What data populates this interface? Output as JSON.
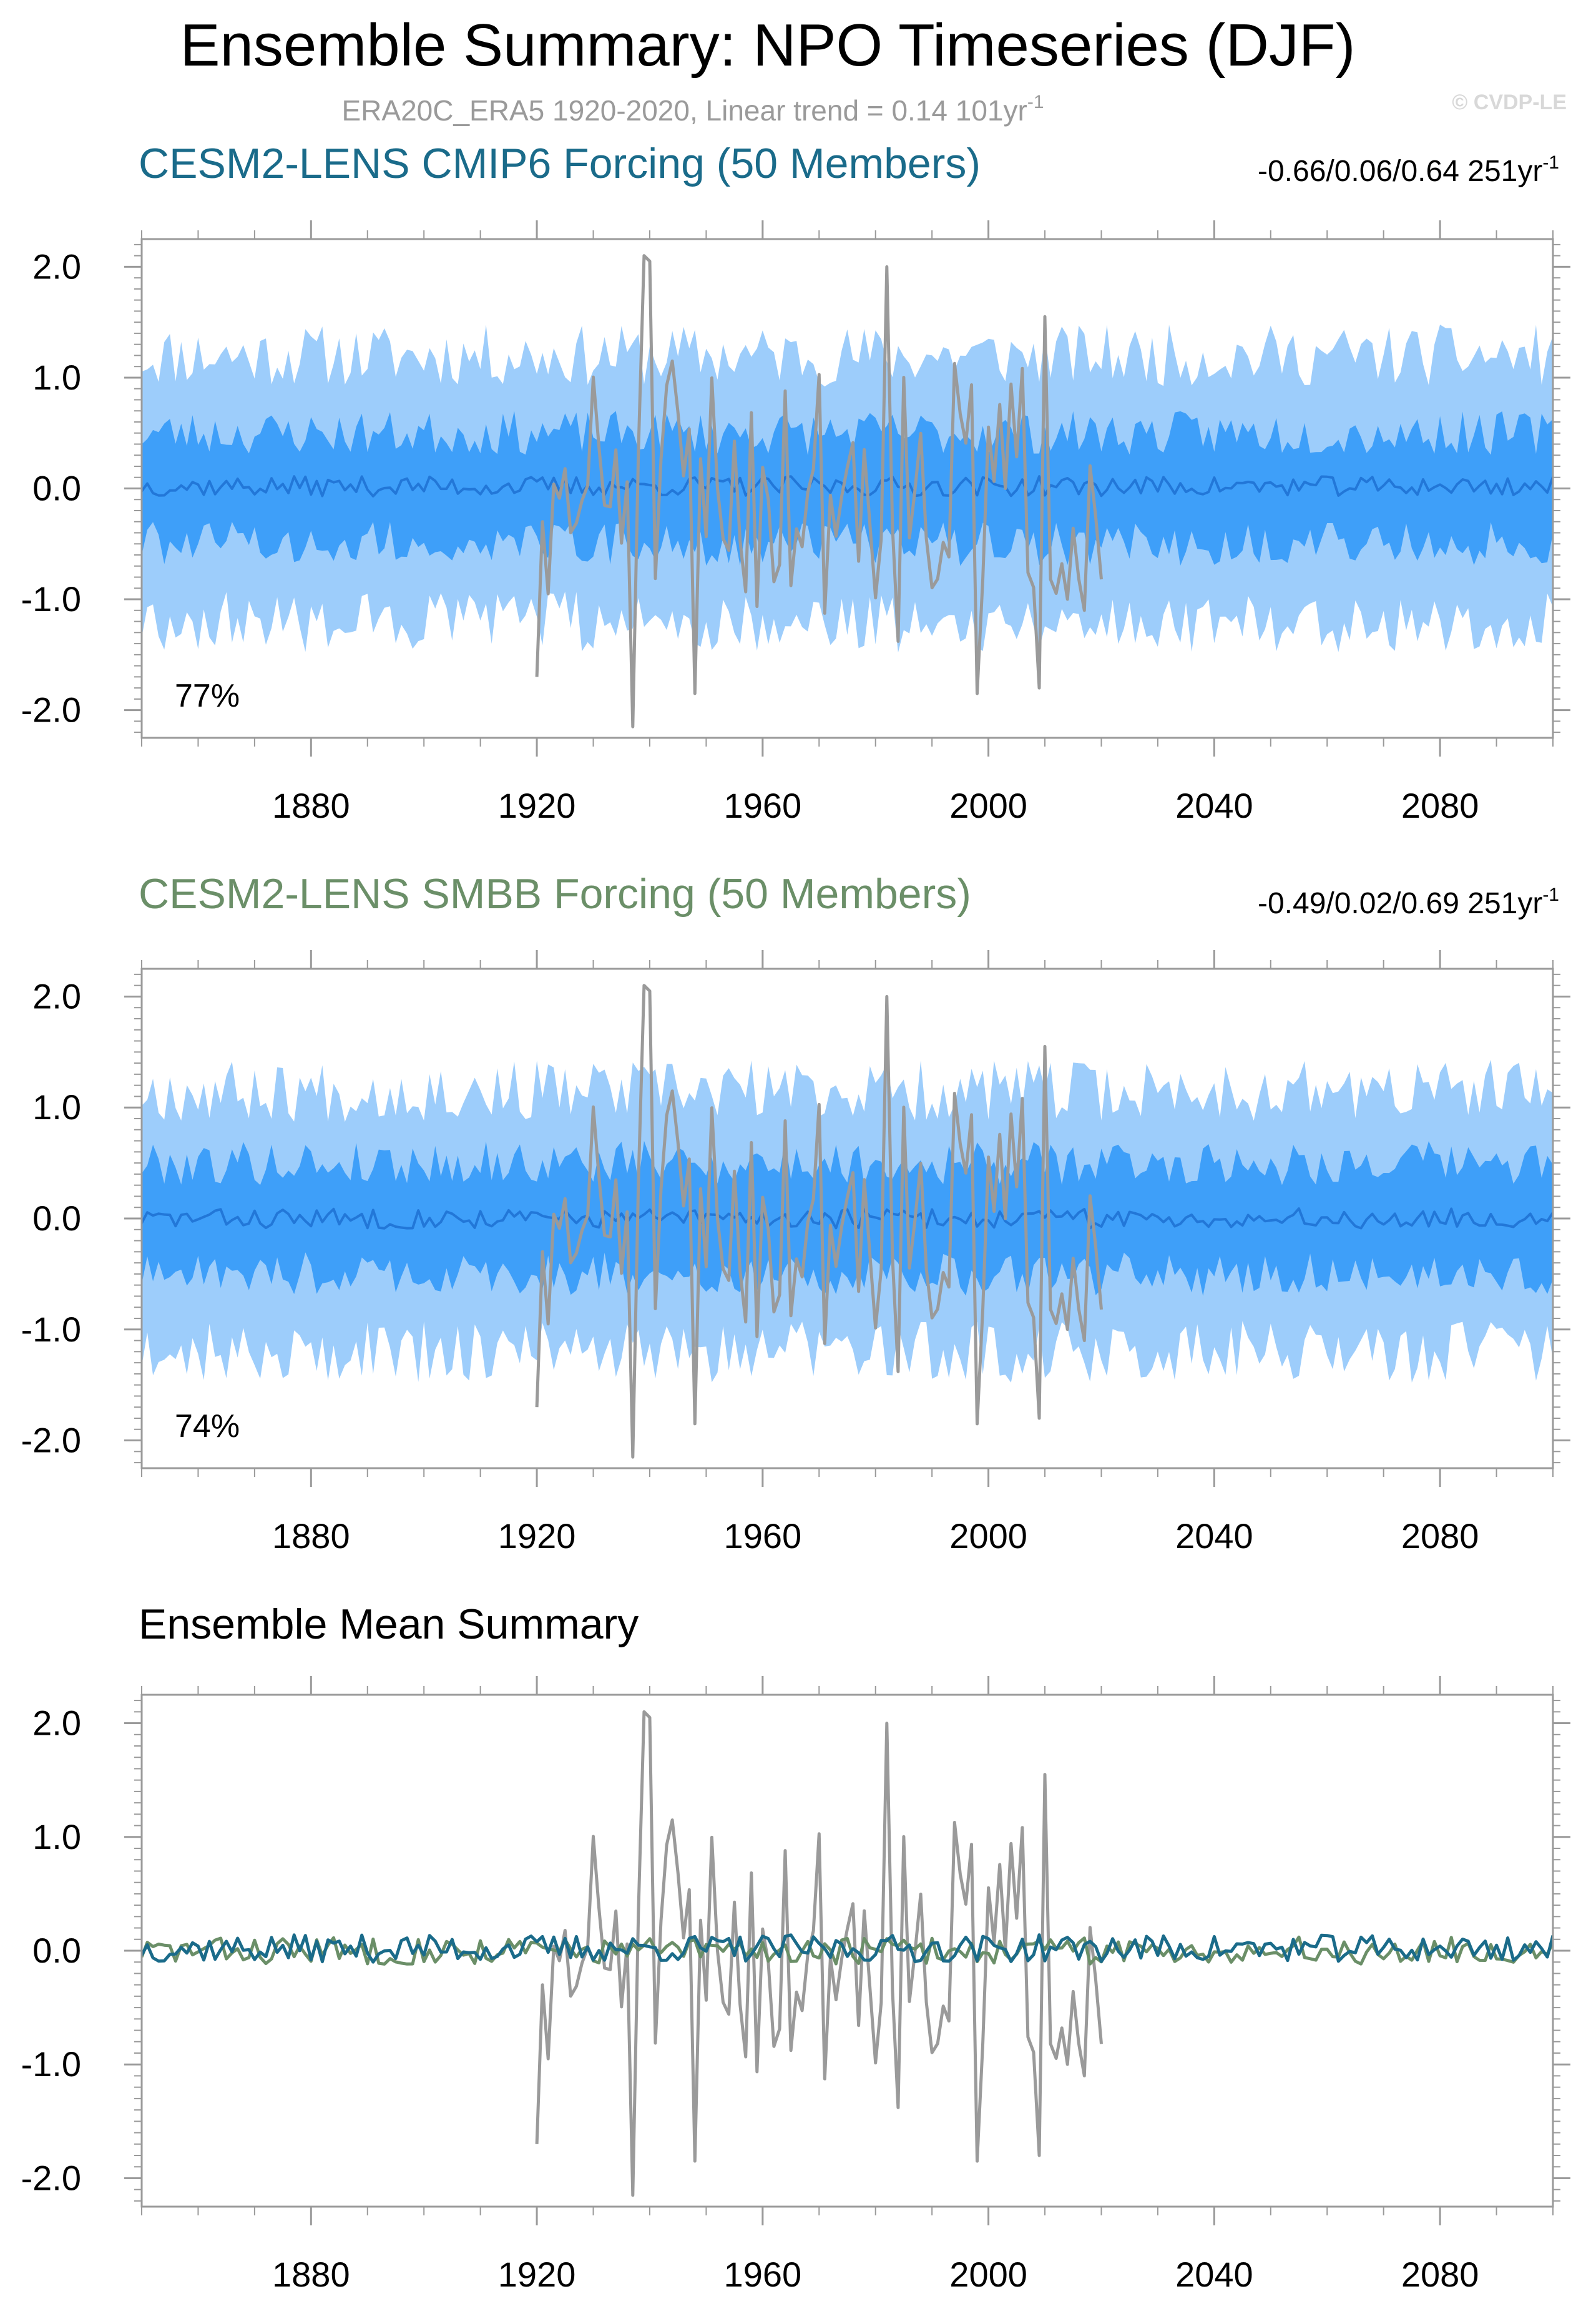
{
  "title": "Ensemble Summary: NPO Timeseries (DJF)",
  "subtitle": "ERA20C_ERA5 1920-2020, Linear trend = 0.14 101yr",
  "subtitle_sup": "-1",
  "watermark": "© CVDP-LE",
  "colors": {
    "cmip6": "#1a6b8a",
    "smbb": "#6b8f68",
    "obs": "#9a9a9a",
    "band_outer": "#9dcdfb",
    "band_inner": "#3e9ff9",
    "ens_mean": "#2277d8",
    "frame": "#9a9a9a",
    "text": "#000000"
  },
  "chart_data": [
    {
      "type": "area",
      "panel": "cmip6",
      "title": "CESM2-LENS CMIP6 Forcing (50 Members)",
      "trend_label": "-0.66/0.06/0.64 251yr",
      "trend_sup": "-1",
      "percent_label": "77%",
      "x_range": [
        1850,
        2100
      ],
      "ylim": [
        -2.25,
        2.25
      ],
      "y_ticks": [
        2.0,
        1.0,
        0.0,
        -1.0,
        -2.0
      ],
      "y_tick_labels": [
        "2.0",
        "1.0",
        "0.0",
        "-1.0",
        "-2.0"
      ],
      "x_ticks": [
        1880,
        1920,
        1960,
        2000,
        2040,
        2080
      ],
      "x_tick_labels": [
        "1880",
        "1920",
        "1960",
        "2000",
        "2040",
        "2080"
      ],
      "series": [
        {
          "name": "ensemble 10-90% range",
          "role": "band_outer",
          "lower_mean": -1.2,
          "upper_mean": 1.2,
          "noise": 0.28,
          "seed": 11
        },
        {
          "name": "ensemble 25-75% range",
          "role": "band_inner",
          "lower_mean": -0.5,
          "upper_mean": 0.5,
          "noise": 0.2,
          "seed": 23
        },
        {
          "name": "ensemble mean",
          "role": "ens_mean",
          "mean": 0.02,
          "noise": 0.09,
          "seed": 37
        },
        {
          "name": "ERA20C_ERA5 observations",
          "role": "obs",
          "x_start": 1920,
          "x_end": 2020,
          "seed": 51
        }
      ]
    },
    {
      "type": "area",
      "panel": "smbb",
      "title": "CESM2-LENS SMBB Forcing (50 Members)",
      "trend_label": "-0.49/0.02/0.69 251yr",
      "trend_sup": "-1",
      "percent_label": "74%",
      "x_range": [
        1850,
        2100
      ],
      "ylim": [
        -2.25,
        2.25
      ],
      "y_ticks": [
        2.0,
        1.0,
        0.0,
        -1.0,
        -2.0
      ],
      "y_tick_labels": [
        "2.0",
        "1.0",
        "0.0",
        "-1.0",
        "-2.0"
      ],
      "x_ticks": [
        1880,
        1920,
        1960,
        2000,
        2040,
        2080
      ],
      "x_tick_labels": [
        "1880",
        "1920",
        "1960",
        "2000",
        "2040",
        "2080"
      ],
      "series": [
        {
          "name": "ensemble 10-90% range",
          "role": "band_outer",
          "lower_mean": -1.2,
          "upper_mean": 1.15,
          "noise": 0.28,
          "seed": 67
        },
        {
          "name": "ensemble 25-75% range",
          "role": "band_inner",
          "lower_mean": -0.5,
          "upper_mean": 0.5,
          "noise": 0.2,
          "seed": 79
        },
        {
          "name": "ensemble mean",
          "role": "ens_mean",
          "mean": 0.0,
          "noise": 0.09,
          "seed": 83
        },
        {
          "name": "ERA20C_ERA5 observations",
          "role": "obs",
          "x_start": 1920,
          "x_end": 2020,
          "seed": 51
        }
      ]
    },
    {
      "type": "line",
      "panel": "mean",
      "title": "Ensemble Mean Summary",
      "x_range": [
        1850,
        2100
      ],
      "ylim": [
        -2.25,
        2.25
      ],
      "y_ticks": [
        2.0,
        1.0,
        0.0,
        -1.0,
        -2.0
      ],
      "y_tick_labels": [
        "2.0",
        "1.0",
        "0.0",
        "-1.0",
        "-2.0"
      ],
      "x_ticks": [
        1880,
        1920,
        1960,
        2000,
        2040,
        2080
      ],
      "x_tick_labels": [
        "1880",
        "1920",
        "1960",
        "2000",
        "2040",
        "2080"
      ],
      "series": [
        {
          "name": "ERA20C_ERA5 observations",
          "role": "obs",
          "x_start": 1920,
          "x_end": 2020,
          "seed": 51
        },
        {
          "name": "CESM2-LENS SMBB ensemble mean",
          "role": "smbb",
          "mean": 0.0,
          "noise": 0.12,
          "seed": 83
        },
        {
          "name": "CESM2-LENS CMIP6 ensemble mean",
          "role": "cmip6",
          "mean": 0.02,
          "noise": 0.12,
          "seed": 37
        }
      ]
    }
  ]
}
